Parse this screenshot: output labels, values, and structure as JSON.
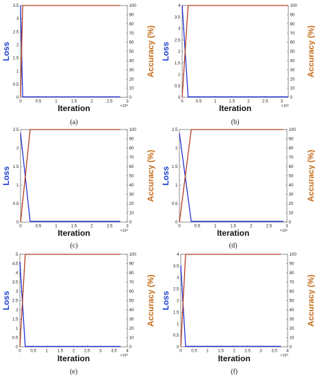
{
  "colors": {
    "loss": "#1f2fd6",
    "accuracy": "#b23a1b",
    "loss_label": "#1a3fd0",
    "accuracy_label": "#c46d1a"
  },
  "chart_data": [
    {
      "panel": "(a)",
      "type": "line",
      "xlabel": "Iteration",
      "ylabel_left": "Loss",
      "ylabel_right": "Accuracy (%)",
      "x_multiplier": "×10⁵",
      "xlim": [
        0,
        3
      ],
      "ylim_left": [
        0,
        3.5
      ],
      "ylim_right": [
        0,
        100
      ],
      "xticks": [
        0,
        0.5,
        1,
        1.5,
        2,
        2.5,
        3
      ],
      "xtick_labels": [
        "0",
        "0.5",
        "1",
        "1.5",
        "2",
        "2.5",
        "3"
      ],
      "yticks_left": [
        0,
        0.5,
        1,
        1.5,
        2,
        2.5,
        3,
        3.5
      ],
      "ytick_labels_left": [
        "0",
        "0.5",
        "1",
        "1.5",
        "2",
        "2.5",
        "3",
        "3.5"
      ],
      "yticks_right": [
        0,
        10,
        20,
        30,
        40,
        50,
        60,
        70,
        80,
        90,
        100
      ],
      "ytick_labels_right": [
        "0",
        "10",
        "20",
        "30",
        "40",
        "50",
        "60",
        "70",
        "80",
        "90",
        "100"
      ],
      "series": [
        {
          "axis": "left",
          "x": [
            0,
            0.06,
            2.8
          ],
          "y": [
            3.5,
            0.02,
            0.02
          ]
        },
        {
          "axis": "right",
          "x": [
            0,
            0.06,
            2.8
          ],
          "y": [
            0,
            100,
            100
          ]
        }
      ]
    },
    {
      "panel": "(b)",
      "type": "line",
      "xlabel": "Iteration",
      "ylabel_left": "Loss",
      "ylabel_right": "Accuracy (%)",
      "x_multiplier": "×10⁵",
      "xlim": [
        0,
        3.2
      ],
      "ylim_left": [
        0,
        4
      ],
      "ylim_right": [
        0,
        100
      ],
      "xticks": [
        0,
        0.5,
        1,
        1.5,
        2,
        2.5,
        3
      ],
      "xtick_labels": [
        "0",
        "0.5",
        "1",
        "1.5",
        "2",
        "2.5",
        "3"
      ],
      "yticks_left": [
        0,
        0.5,
        1,
        1.5,
        2,
        2.5,
        3,
        3.5,
        4
      ],
      "ytick_labels_left": [
        "0",
        "0.5",
        "1",
        "1.5",
        "2",
        "2.5",
        "3",
        "3.5",
        "4"
      ],
      "yticks_right": [
        0,
        10,
        20,
        30,
        40,
        50,
        60,
        70,
        80,
        90,
        100
      ],
      "ytick_labels_right": [
        "0",
        "10",
        "20",
        "30",
        "40",
        "50",
        "60",
        "70",
        "80",
        "90",
        "100"
      ],
      "series": [
        {
          "axis": "left",
          "x": [
            0,
            0.18,
            3.2
          ],
          "y": [
            4,
            0.02,
            0.02
          ]
        },
        {
          "axis": "right",
          "x": [
            0,
            0.18,
            3.2
          ],
          "y": [
            0,
            100,
            100
          ]
        }
      ]
    },
    {
      "panel": "(c)",
      "type": "line",
      "xlabel": "Iteration",
      "ylabel_left": "Loss",
      "ylabel_right": "Accuracy (%)",
      "x_multiplier": "×10⁵",
      "xlim": [
        0,
        3
      ],
      "ylim_left": [
        0,
        2.5
      ],
      "ylim_right": [
        0,
        100
      ],
      "xticks": [
        0,
        0.5,
        1,
        1.5,
        2,
        2.5,
        3
      ],
      "xtick_labels": [
        "0",
        "0.5",
        "1",
        "1.5",
        "2",
        "2.5",
        "3"
      ],
      "yticks_left": [
        0,
        0.5,
        1,
        1.5,
        2,
        2.5
      ],
      "ytick_labels_left": [
        "0",
        "0.5",
        "1",
        "1.5",
        "2",
        "2.5"
      ],
      "yticks_right": [
        0,
        10,
        20,
        30,
        40,
        50,
        60,
        70,
        80,
        90,
        100
      ],
      "ytick_labels_right": [
        "0",
        "10",
        "20",
        "30",
        "40",
        "50",
        "60",
        "70",
        "80",
        "90",
        "100"
      ],
      "series": [
        {
          "axis": "left",
          "x": [
            0,
            0.27,
            2.8
          ],
          "y": [
            2.4,
            0.02,
            0.02
          ]
        },
        {
          "axis": "right",
          "x": [
            0,
            0.27,
            2.8
          ],
          "y": [
            0,
            100,
            100
          ]
        }
      ]
    },
    {
      "panel": "(d)",
      "type": "line",
      "xlabel": "Iteration",
      "ylabel_left": "Loss",
      "ylabel_right": "Accuracy (%)",
      "x_multiplier": "×10⁵",
      "xlim": [
        0,
        3
      ],
      "ylim_left": [
        0,
        2.5
      ],
      "ylim_right": [
        0,
        100
      ],
      "xticks": [
        0,
        0.5,
        1,
        1.5,
        2,
        2.5,
        3
      ],
      "xtick_labels": [
        "0",
        "0.5",
        "1",
        "1.5",
        "2",
        "2.5",
        "3"
      ],
      "yticks_left": [
        0,
        0.5,
        1,
        1.5,
        2,
        2.5
      ],
      "ytick_labels_left": [
        "0",
        "0.5",
        "1",
        "1.5",
        "2",
        "2.5"
      ],
      "yticks_right": [
        0,
        10,
        20,
        30,
        40,
        50,
        60,
        70,
        80,
        90,
        100
      ],
      "ytick_labels_right": [
        "0",
        "10",
        "20",
        "30",
        "40",
        "50",
        "60",
        "70",
        "80",
        "90",
        "100"
      ],
      "series": [
        {
          "axis": "left",
          "x": [
            0,
            0.33,
            2.9
          ],
          "y": [
            2.4,
            0.02,
            0.02
          ]
        },
        {
          "axis": "right",
          "x": [
            0,
            0.33,
            2.9
          ],
          "y": [
            0,
            100,
            100
          ]
        }
      ]
    },
    {
      "panel": "(e)",
      "type": "line",
      "xlabel": "Iteration",
      "ylabel_left": "Loss",
      "ylabel_right": "Accuracy (%)",
      "x_multiplier": "×10⁵",
      "xlim": [
        0,
        4
      ],
      "ylim_left": [
        0,
        5
      ],
      "ylim_right": [
        0,
        100
      ],
      "xticks": [
        0,
        0.5,
        1,
        1.5,
        2,
        2.5,
        3,
        3.5,
        4
      ],
      "xtick_labels": [
        "0",
        "0.5",
        "1",
        "1.5",
        "2",
        "2.5",
        "3",
        "3.5",
        "4"
      ],
      "yticks_left": [
        0,
        0.5,
        1,
        1.5,
        2,
        2.5,
        3,
        3.5,
        4,
        4.5,
        5
      ],
      "ytick_labels_left": [
        "0",
        "0.5",
        "1",
        "1.5",
        "2",
        "2.5",
        "3",
        "3.5",
        "4",
        "4.5",
        "5"
      ],
      "yticks_right": [
        0,
        10,
        20,
        30,
        40,
        50,
        60,
        70,
        80,
        90,
        100
      ],
      "ytick_labels_right": [
        "0",
        "10",
        "20",
        "30",
        "40",
        "50",
        "60",
        "70",
        "80",
        "90",
        "100"
      ],
      "series": [
        {
          "axis": "left",
          "x": [
            0,
            0.2,
            3.75
          ],
          "y": [
            4.6,
            0.02,
            0.02
          ]
        },
        {
          "axis": "right",
          "x": [
            0,
            0.2,
            3.75
          ],
          "y": [
            0,
            100,
            100
          ]
        }
      ]
    },
    {
      "panel": "(f)",
      "type": "line",
      "xlabel": "Iteration",
      "ylabel_left": "Loss",
      "ylabel_right": "Accuracy (%)",
      "x_multiplier": "×10⁵",
      "xlim": [
        0,
        4
      ],
      "ylim_left": [
        0,
        4
      ],
      "ylim_right": [
        0,
        100
      ],
      "xticks": [
        0,
        0.5,
        1,
        1.5,
        2,
        2.5,
        3,
        3.5,
        4
      ],
      "xtick_labels": [
        "0",
        "0.5",
        "1",
        "1.5",
        "2",
        "2.5",
        "3",
        "3.5",
        "4"
      ],
      "yticks_left": [
        0,
        0.5,
        1,
        1.5,
        2,
        2.5,
        3,
        3.5,
        4
      ],
      "ytick_labels_left": [
        "0",
        "0.5",
        "1",
        "1.5",
        "2",
        "2.5",
        "3",
        "3.5",
        "4"
      ],
      "yticks_right": [
        0,
        10,
        20,
        30,
        40,
        50,
        60,
        70,
        80,
        90,
        100
      ],
      "ytick_labels_right": [
        "0",
        "10",
        "20",
        "30",
        "40",
        "50",
        "60",
        "70",
        "80",
        "90",
        "100"
      ],
      "series": [
        {
          "axis": "left",
          "x": [
            0,
            0.18,
            3.75
          ],
          "y": [
            3.5,
            0.02,
            0.02
          ]
        },
        {
          "axis": "right",
          "x": [
            0,
            0.18,
            3.75
          ],
          "y": [
            0,
            100,
            100
          ]
        }
      ]
    }
  ]
}
